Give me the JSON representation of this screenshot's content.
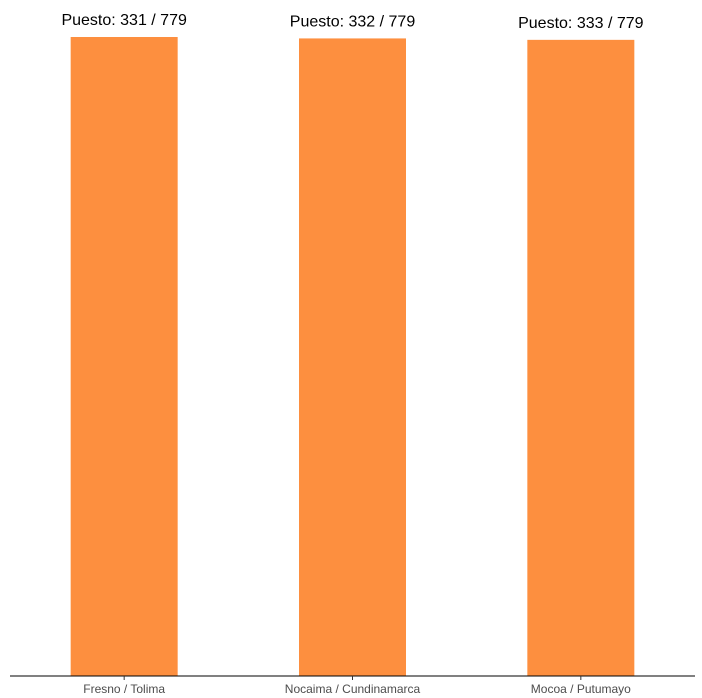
{
  "chart_data": {
    "type": "bar",
    "categories": [
      "Fresno / Tolima",
      "Nocaima / Cundinamarca",
      "Mocoa / Putumayo"
    ],
    "values": [
      331,
      332,
      333
    ],
    "data_labels": [
      "Puesto: 331 / 779",
      "Puesto: 332 / 779",
      "Puesto: 333 / 779"
    ],
    "y_axis_reversed": true,
    "ylim": [
      779,
      331
    ],
    "title": "",
    "xlabel": "",
    "ylabel": "",
    "grid": false,
    "bar_color": "#FD8F3F",
    "axis_color": "#000000",
    "tick_label_color": "#4D4D4D"
  }
}
